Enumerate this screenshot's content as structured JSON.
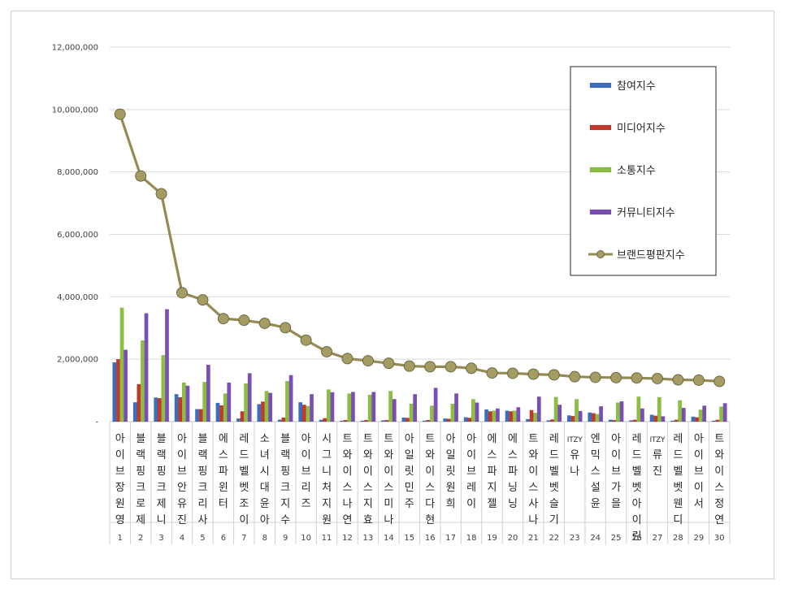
{
  "chart_data": {
    "type": "bar",
    "title": "",
    "xlabel": "",
    "ylabel": "",
    "ylim": [
      0,
      12000000
    ],
    "yticks": [
      "-",
      "2,000,000",
      "4,000,000",
      "6,000,000",
      "8,000,000",
      "10,000,000",
      "12,000,000"
    ],
    "grid": true,
    "legend_position": "top-right",
    "categories": [
      "아이브 장원영",
      "블랙핑크 로제",
      "블랙핑크 제니",
      "아이브 안유진",
      "블랙핑크 리사",
      "에스파 윈터",
      "레드벨벳 조이",
      "소녀시대 윤아",
      "블랙핑크 지수",
      "아이브 리즈",
      "시그니처 지원",
      "트와이스 나연",
      "트와이스 지효",
      "트와이스 미나",
      "아일릿 민주",
      "트와이스 다현",
      "아일릿 원희",
      "아이브 레이",
      "에스파 지젤",
      "에스파 닝닝",
      "트와이스 사나",
      "레드벨벳 슬기",
      "ITZY 유나",
      "엔믹스 설윤",
      "아이브 가을",
      "레드벨벳 아이린",
      "ITZY 류진",
      "레드벨벳 웬디",
      "아이브 이서",
      "트와이스 정연"
    ],
    "ranks": [
      "1",
      "2",
      "3",
      "4",
      "5",
      "6",
      "7",
      "8",
      "9",
      "10",
      "11",
      "12",
      "13",
      "14",
      "15",
      "16",
      "17",
      "18",
      "19",
      "20",
      "21",
      "22",
      "23",
      "24",
      "25",
      "26",
      "27",
      "28",
      "29",
      "30"
    ],
    "series": [
      {
        "name": "참여지수",
        "kind": "bar",
        "color": "#3a6fc0",
        "values": [
          1900000,
          620000,
          770000,
          880000,
          400000,
          600000,
          100000,
          560000,
          60000,
          620000,
          60000,
          30000,
          30000,
          40000,
          130000,
          30000,
          100000,
          140000,
          390000,
          350000,
          80000,
          40000,
          200000,
          290000,
          60000,
          40000,
          220000,
          30000,
          160000,
          30000
        ]
      },
      {
        "name": "미디어지수",
        "kind": "bar",
        "color": "#c0392b",
        "values": [
          2000000,
          1200000,
          750000,
          780000,
          400000,
          520000,
          330000,
          640000,
          130000,
          540000,
          110000,
          50000,
          50000,
          50000,
          120000,
          50000,
          90000,
          120000,
          330000,
          330000,
          370000,
          70000,
          180000,
          270000,
          50000,
          60000,
          190000,
          60000,
          140000,
          60000
        ]
      },
      {
        "name": "소통지수",
        "kind": "bar",
        "color": "#8cbf3f",
        "values": [
          3650000,
          2600000,
          2130000,
          1250000,
          1270000,
          900000,
          1220000,
          980000,
          1300000,
          500000,
          1030000,
          900000,
          860000,
          980000,
          570000,
          510000,
          570000,
          720000,
          350000,
          350000,
          280000,
          790000,
          720000,
          240000,
          610000,
          800000,
          780000,
          680000,
          380000,
          480000
        ]
      },
      {
        "name": "커뮤니티지수",
        "kind": "bar",
        "color": "#7a4fb5",
        "values": [
          2300000,
          3470000,
          3600000,
          1150000,
          1820000,
          1250000,
          1550000,
          920000,
          1490000,
          880000,
          940000,
          950000,
          950000,
          720000,
          880000,
          1080000,
          900000,
          610000,
          420000,
          460000,
          800000,
          540000,
          340000,
          490000,
          650000,
          420000,
          170000,
          440000,
          510000,
          590000
        ]
      },
      {
        "name": "브랜드평판지수",
        "kind": "line",
        "color": "#948a54",
        "values": [
          9850000,
          7870000,
          7300000,
          4130000,
          3900000,
          3300000,
          3250000,
          3150000,
          3010000,
          2610000,
          2240000,
          2020000,
          1950000,
          1870000,
          1780000,
          1760000,
          1760000,
          1710000,
          1560000,
          1550000,
          1520000,
          1500000,
          1440000,
          1420000,
          1410000,
          1400000,
          1380000,
          1340000,
          1330000,
          1290000
        ]
      }
    ]
  }
}
